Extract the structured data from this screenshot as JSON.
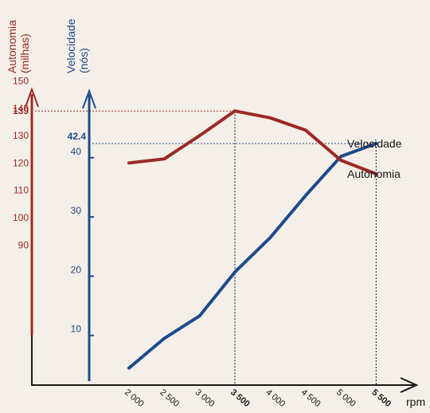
{
  "colors": {
    "background": "#f4efe8",
    "autonomia": "#9b2a25",
    "velocidade": "#1f4a8c",
    "axis": "#1a1a1a"
  },
  "chart_data": {
    "type": "line",
    "xlabel": "rpm",
    "x_ticks": [
      "2 000",
      "2 500",
      "3 000",
      "3 500",
      "4 000",
      "4 500",
      "5 000",
      "5 500"
    ],
    "x_tick_bold": [
      "3 500",
      "5 500"
    ],
    "x": [
      2000,
      2500,
      3000,
      3500,
      4000,
      4500,
      5000,
      5500
    ],
    "axes": {
      "autonomia": {
        "title": "Autonomia",
        "subtitle": "(milhas)",
        "ticks": [
          90,
          100,
          110,
          120,
          130,
          140,
          150
        ],
        "highlight_label": "139"
      },
      "velocidade": {
        "title": "Velocidade",
        "subtitle": "(nós)",
        "ticks": [
          10,
          20,
          30,
          40
        ],
        "highlight_label": "42.4"
      }
    },
    "series": [
      {
        "name": "Velocidade",
        "axis": "velocidade",
        "values": [
          4.5,
          9.5,
          13.3,
          20.7,
          26.5,
          33.6,
          40.2,
          42.4
        ]
      },
      {
        "name": "Autonomia",
        "axis": "autonomia",
        "values": [
          120,
          121.5,
          130,
          139,
          136.5,
          132,
          121,
          116
        ]
      }
    ],
    "grid": false,
    "highlights": [
      {
        "x": 3500,
        "series": "Autonomia",
        "value": 139,
        "label": "3 500"
      },
      {
        "x": 5500,
        "series": "Velocidade",
        "value": 42.4,
        "label": "5 500"
      }
    ]
  }
}
